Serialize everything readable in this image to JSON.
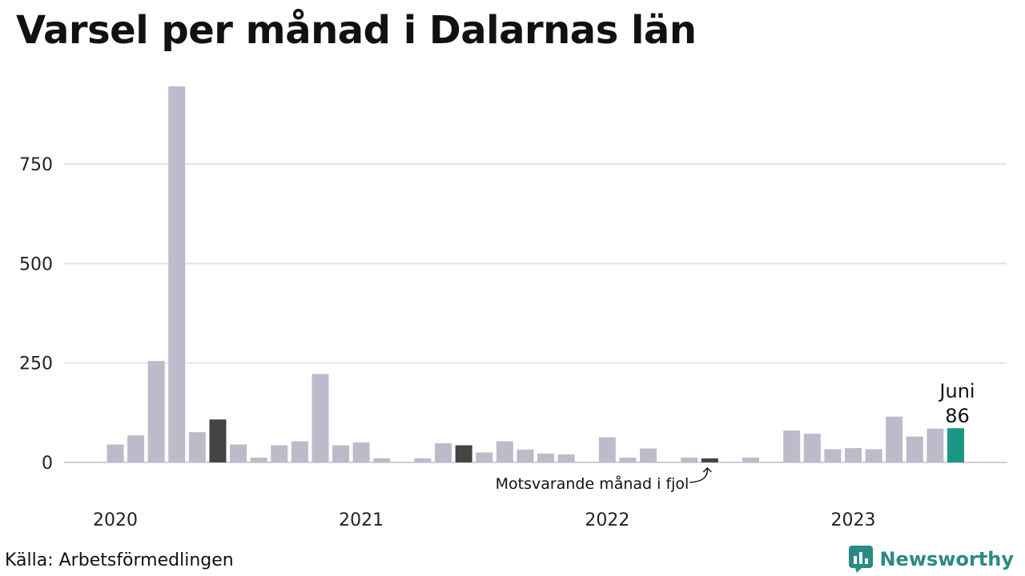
{
  "title": "Varsel per månad i Dalarnas län",
  "source": "Källa: Arbetsförmedlingen",
  "brand": {
    "name": "Newsworthy",
    "icon": "newsworthy-logo-icon",
    "color": "#2b8a84"
  },
  "colors": {
    "default": "#bcbbca",
    "previous_year": "#444444",
    "highlight": "#1a9685"
  },
  "highlight": {
    "month": "Juni",
    "value": "86"
  },
  "annotation": "Motsvarande månad i fjol",
  "chart_data": {
    "type": "bar",
    "title": "Varsel per månad i Dalarnas län",
    "xlabel": "",
    "ylabel": "",
    "ylim": [
      0,
      950
    ],
    "yticks": [
      0,
      250,
      500,
      750
    ],
    "year_labels": [
      "2020",
      "2021",
      "2022",
      "2023"
    ],
    "grid": true,
    "categories": [
      "2020-01",
      "2020-02",
      "2020-03",
      "2020-04",
      "2020-05",
      "2020-06",
      "2020-07",
      "2020-08",
      "2020-09",
      "2020-10",
      "2020-11",
      "2020-12",
      "2021-01",
      "2021-02",
      "2021-03",
      "2021-04",
      "2021-05",
      "2021-06",
      "2021-07",
      "2021-08",
      "2021-09",
      "2021-10",
      "2021-11",
      "2021-12",
      "2022-01",
      "2022-02",
      "2022-03",
      "2022-04",
      "2022-05",
      "2022-06",
      "2022-07",
      "2022-08",
      "2022-09",
      "2022-10",
      "2022-11",
      "2022-12",
      "2023-01",
      "2023-02",
      "2023-03",
      "2023-04",
      "2023-05",
      "2023-06"
    ],
    "values": [
      45,
      68,
      255,
      945,
      76,
      108,
      45,
      12,
      43,
      53,
      222,
      43,
      50,
      10,
      0,
      10,
      48,
      43,
      25,
      53,
      32,
      22,
      20,
      0,
      63,
      12,
      35,
      0,
      12,
      10,
      0,
      12,
      0,
      80,
      72,
      33,
      36,
      33,
      115,
      65,
      85,
      86
    ],
    "bar_colors": [
      "default",
      "default",
      "default",
      "default",
      "default",
      "previous_year",
      "default",
      "default",
      "default",
      "default",
      "default",
      "default",
      "default",
      "default",
      "default",
      "default",
      "default",
      "previous_year",
      "default",
      "default",
      "default",
      "default",
      "default",
      "default",
      "default",
      "default",
      "default",
      "default",
      "default",
      "previous_year",
      "default",
      "default",
      "default",
      "default",
      "default",
      "default",
      "default",
      "default",
      "default",
      "default",
      "default",
      "highlight"
    ]
  }
}
